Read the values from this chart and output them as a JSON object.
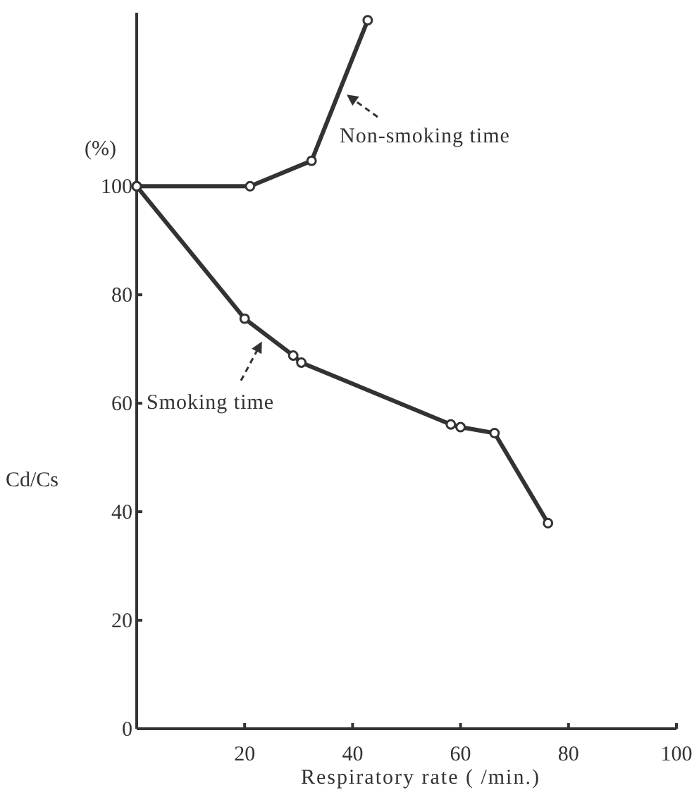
{
  "chart_data": {
    "type": "line",
    "xlabel": "Respiratory rate ( /min.)",
    "ylabel": "Cd/Cs",
    "annotations": [
      "(%)",
      {
        "text": "Non-smoking time",
        "x": 38.9,
        "y": 116.9
      },
      {
        "text": "Smoking time",
        "x": 23.2,
        "y": 71.4
      }
    ],
    "xlim": [
      0,
      100
    ],
    "xticks": [
      {
        "value": 0,
        "label": null
      },
      20,
      40,
      60,
      80,
      100
    ],
    "ylim": [
      0,
      132
    ],
    "yticks": [
      0,
      20,
      40,
      60,
      80,
      100
    ],
    "marker": "circle",
    "line_style": "solid",
    "grid": false,
    "legend": false,
    "series": [
      {
        "color": "#333333",
        "x": [
          0,
          21,
          32.4,
          42.8
        ],
        "values": [
          100,
          100,
          104.7,
          130.6
        ]
      },
      {
        "color": "#333333",
        "x": [
          0,
          20,
          29,
          30.5,
          58.2,
          60,
          66.3,
          76.2
        ],
        "values": [
          100,
          75.6,
          68.8,
          67.5,
          56.1,
          55.6,
          54.5,
          37.9
        ]
      }
    ]
  }
}
